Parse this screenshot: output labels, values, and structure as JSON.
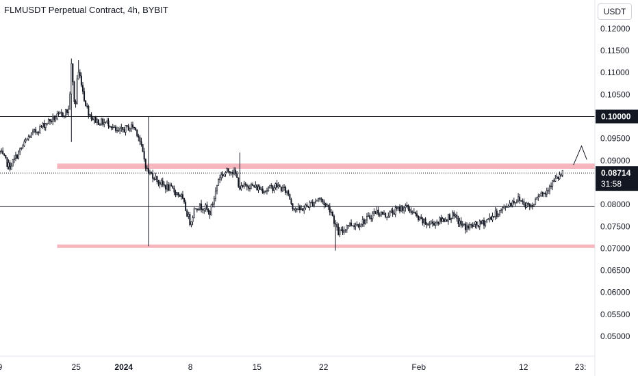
{
  "header": {
    "title": "FLMUSDT Perpetual Contract, 4h, BYBIT",
    "currency": "USDT"
  },
  "chart_data": {
    "type": "candlestick",
    "symbol": "FLMUSDT Perpetual Contract",
    "interval": "4h",
    "exchange": "BYBIT",
    "ylim": [
      0.0455,
      0.1265
    ],
    "y_ticks": [
      "0.12000",
      "0.11500",
      "0.11000",
      "0.10500",
      "0.09500",
      "0.09000",
      "0.08000",
      "0.07500",
      "0.07000",
      "0.06500",
      "0.06000",
      "0.05500",
      "0.05000"
    ],
    "y_tick_values": [
      0.12,
      0.115,
      0.11,
      0.105,
      0.095,
      0.09,
      0.08,
      0.075,
      0.07,
      0.065,
      0.06,
      0.055,
      0.05
    ],
    "x_ticks": [
      {
        "label": "9",
        "x": 0,
        "bold": false
      },
      {
        "label": "25",
        "x": 16,
        "bold": false
      },
      {
        "label": "2024",
        "x": 26,
        "bold": true
      },
      {
        "label": "8",
        "x": 40,
        "bold": false
      },
      {
        "label": "15",
        "x": 54,
        "bold": false
      },
      {
        "label": "22",
        "x": 68,
        "bold": false
      },
      {
        "label": "Feb",
        "x": 88,
        "bold": false
      },
      {
        "label": "12",
        "x": 110,
        "bold": false
      },
      {
        "label": "23:",
        "x": 122,
        "bold": false
      }
    ],
    "horizontal_lines": [
      {
        "value": 0.1,
        "label": "0.10000",
        "color": "#131722"
      },
      {
        "value": 0.0795,
        "label": "",
        "color": "#131722"
      }
    ],
    "zones": [
      {
        "from": 0.0881,
        "to": 0.0893,
        "x_start": 12,
        "color": "#f5b7bd"
      },
      {
        "from": 0.0701,
        "to": 0.0709,
        "x_start": 12,
        "color": "#f5b7bd"
      }
    ],
    "last_price": {
      "value": 0.08714,
      "label": "0.08714",
      "countdown": "31:58"
    },
    "projection": {
      "x": [
        120.5,
        122.2,
        123.3
      ],
      "y": [
        0.089,
        0.0933,
        0.0902
      ]
    },
    "candle_color": "#131722",
    "anchors": [
      [
        0,
        0.0919
      ],
      [
        2,
        0.0885
      ],
      [
        6,
        0.0953
      ],
      [
        10,
        0.0988
      ],
      [
        13,
        0.1005
      ],
      [
        14.5,
        0.1015
      ],
      [
        15,
        0.1115
      ],
      [
        15.8,
        0.101
      ],
      [
        16.3,
        0.1105
      ],
      [
        17,
        0.1085
      ],
      [
        17.6,
        0.1045
      ],
      [
        18.5,
        0.1012
      ],
      [
        19.5,
        0.0995
      ],
      [
        21,
        0.0987
      ],
      [
        23,
        0.0985
      ],
      [
        24.5,
        0.0963
      ],
      [
        26.5,
        0.0973
      ],
      [
        28,
        0.0978
      ],
      [
        29,
        0.096
      ],
      [
        31,
        0.0873
      ],
      [
        32,
        0.0868
      ],
      [
        34,
        0.0845
      ],
      [
        36,
        0.0835
      ],
      [
        38,
        0.082
      ],
      [
        40,
        0.0758
      ],
      [
        41,
        0.0795
      ],
      [
        43,
        0.0795
      ],
      [
        44,
        0.0778
      ],
      [
        45,
        0.0815
      ],
      [
        46,
        0.0863
      ],
      [
        48.5,
        0.088
      ],
      [
        49.5,
        0.0868
      ],
      [
        50.5,
        0.0835
      ],
      [
        52,
        0.0845
      ],
      [
        54,
        0.0838
      ],
      [
        56,
        0.0833
      ],
      [
        58,
        0.0843
      ],
      [
        60.5,
        0.0828
      ],
      [
        61.5,
        0.0795
      ],
      [
        63,
        0.0787
      ],
      [
        65.5,
        0.0803
      ],
      [
        67,
        0.0815
      ],
      [
        69.5,
        0.0788
      ],
      [
        71,
        0.0735
      ],
      [
        72,
        0.0738
      ],
      [
        73,
        0.0755
      ],
      [
        75,
        0.0755
      ],
      [
        77,
        0.0765
      ],
      [
        79,
        0.0785
      ],
      [
        81,
        0.0775
      ],
      [
        83,
        0.0785
      ],
      [
        85,
        0.0795
      ],
      [
        86.5,
        0.0785
      ],
      [
        88,
        0.0765
      ],
      [
        90,
        0.0755
      ],
      [
        93,
        0.0765
      ],
      [
        95,
        0.0775
      ],
      [
        96,
        0.0765
      ],
      [
        97,
        0.0753
      ],
      [
        98,
        0.0748
      ],
      [
        99.5,
        0.0752
      ],
      [
        101,
        0.0755
      ],
      [
        104,
        0.0777
      ],
      [
        105.5,
        0.0788
      ],
      [
        107,
        0.0802
      ],
      [
        109,
        0.0813
      ],
      [
        110.5,
        0.08
      ],
      [
        112,
        0.0797
      ],
      [
        112.5,
        0.0818
      ],
      [
        113.5,
        0.0826
      ],
      [
        114.5,
        0.0825
      ],
      [
        115.5,
        0.0845
      ],
      [
        117,
        0.0858
      ],
      [
        118.3,
        0.0871
      ]
    ]
  }
}
